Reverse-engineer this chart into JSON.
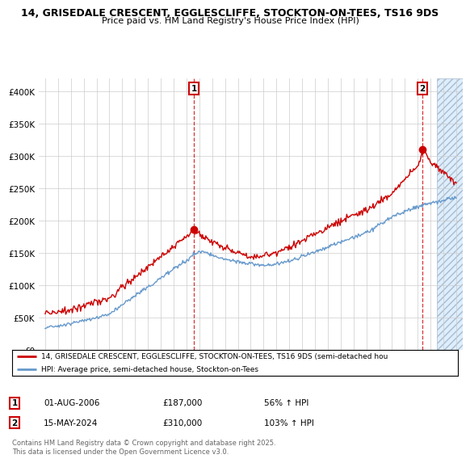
{
  "title_line1": "14, GRISEDALE CRESCENT, EGGLESCLIFFE, STOCKTON-ON-TEES, TS16 9DS",
  "title_line2": "Price paid vs. HM Land Registry's House Price Index (HPI)",
  "sale1_year": 2006.583,
  "sale1_price": 187000,
  "sale1_label": "1",
  "sale2_year": 2024.37,
  "sale2_price": 310000,
  "sale2_label": "2",
  "ylim_max": 420000,
  "ylim_min": 0,
  "xmin": 1994.5,
  "xmax": 2027.5,
  "legend_line1": "14, GRISEDALE CRESCENT, EGGLESCLIFFE, STOCKTON-ON-TEES, TS16 9DS (semi-detached hou",
  "legend_line2": "HPI: Average price, semi-detached house, Stockton-on-Tees",
  "note1_label": "1",
  "note1_date": "01-AUG-2006",
  "note1_price": "£187,000",
  "note1_hpi": "56% ↑ HPI",
  "note2_label": "2",
  "note2_date": "15-MAY-2024",
  "note2_price": "£310,000",
  "note2_hpi": "103% ↑ HPI",
  "footer": "Contains HM Land Registry data © Crown copyright and database right 2025.\nThis data is licensed under the Open Government Licence v3.0.",
  "red_color": "#cc0000",
  "blue_color": "#6699cc",
  "bg_color": "#ffffff",
  "grid_color": "#cccccc",
  "hatch_color": "#aabbcc",
  "hatch_start": 2025.5,
  "hatch_end": 2027.5
}
